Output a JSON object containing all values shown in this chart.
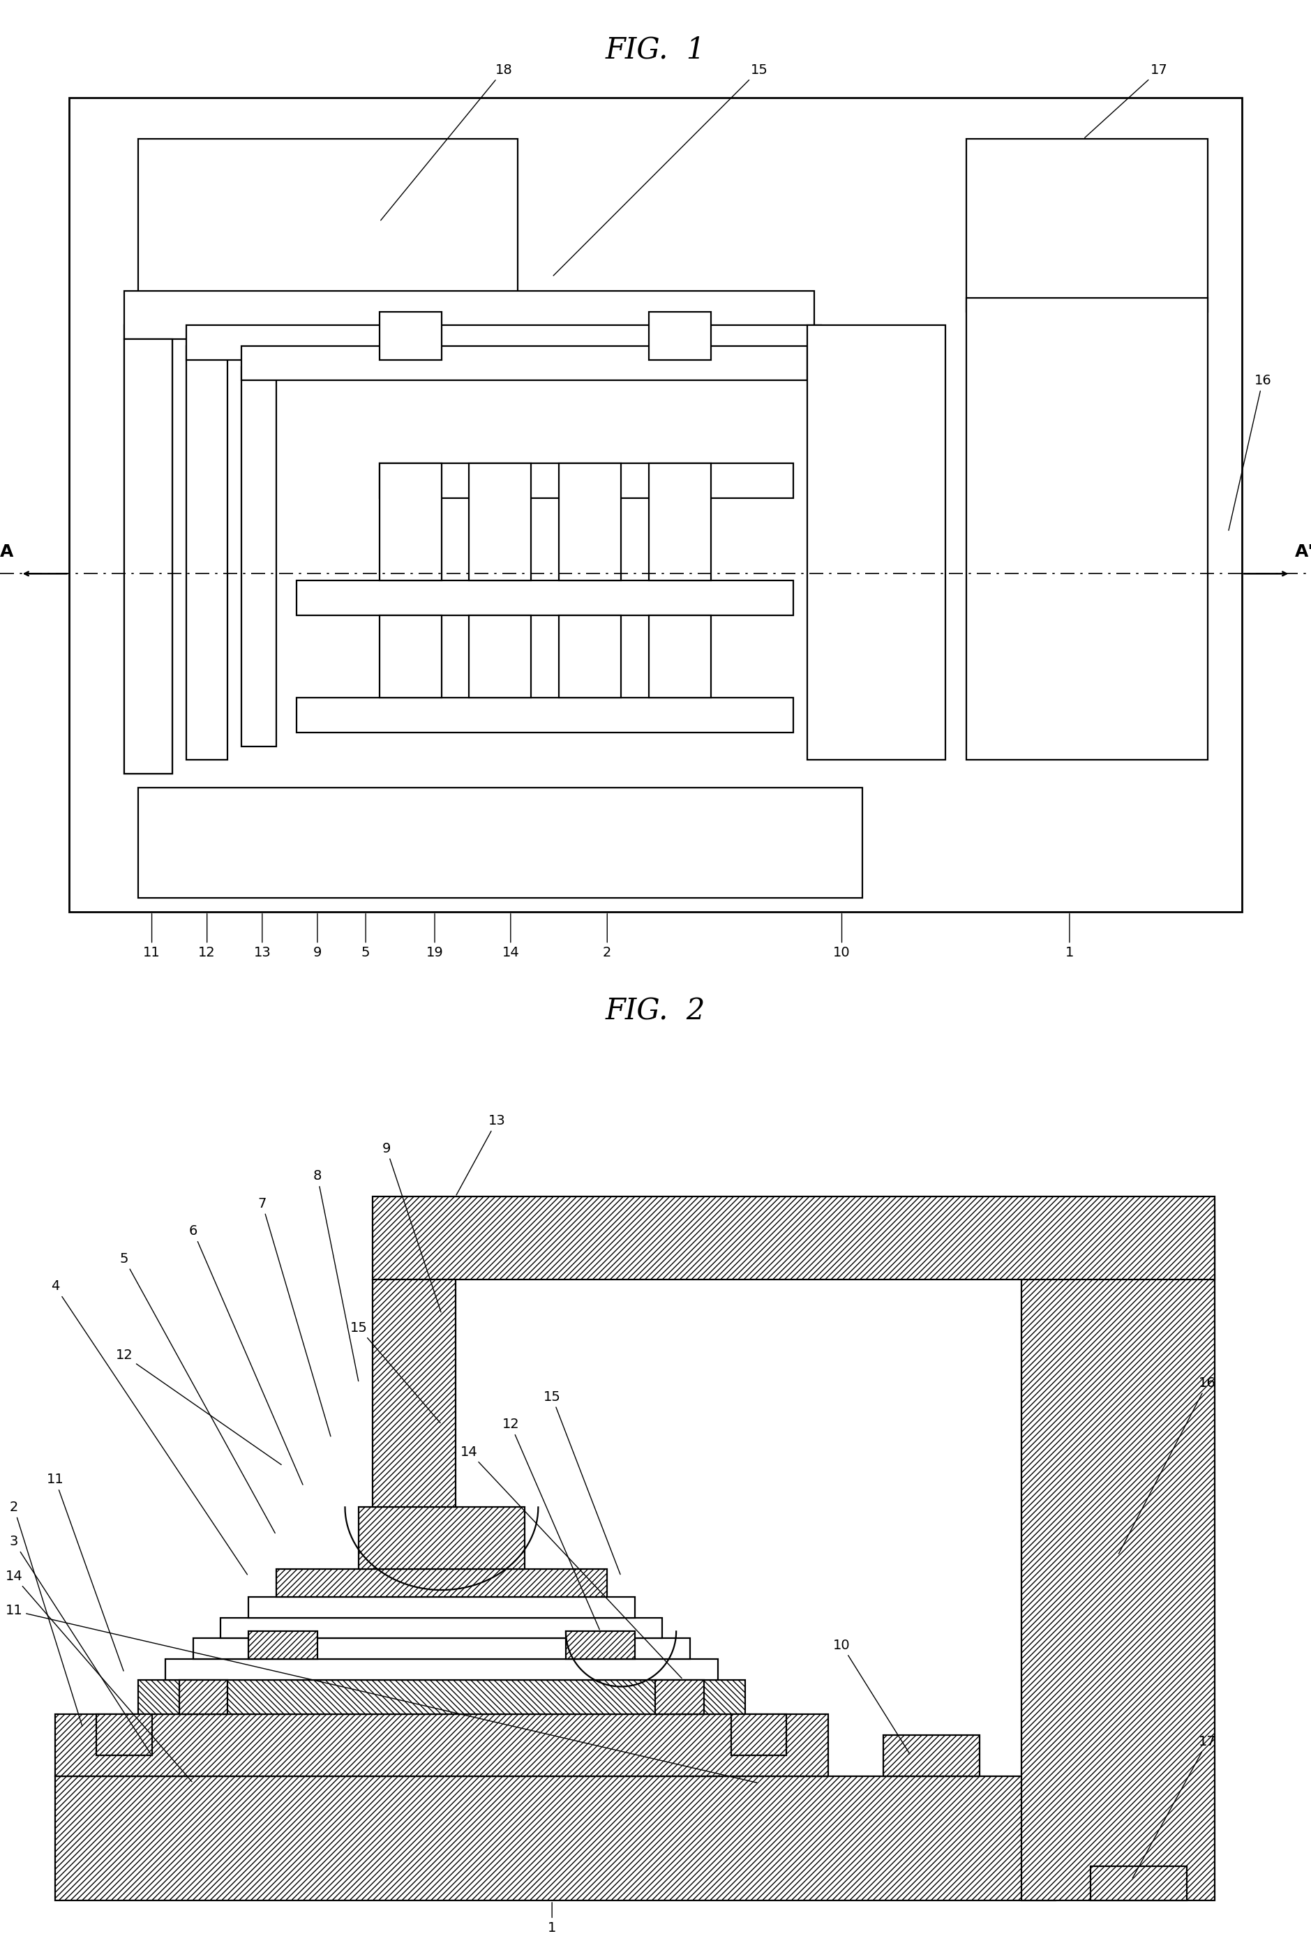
{
  "fig1_title": "FIG.  1",
  "fig2_title": "FIG.  2",
  "bg_color": "#ffffff",
  "lw": 1.6,
  "lw2": 2.0,
  "fs_label": 14,
  "fs_title": 30
}
